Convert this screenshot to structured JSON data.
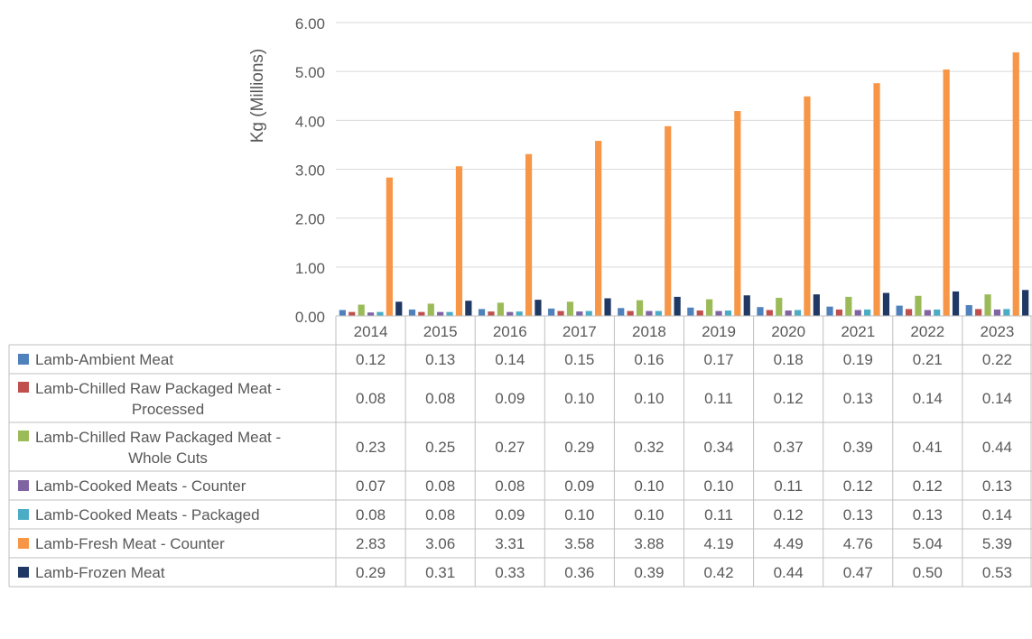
{
  "chart_data": {
    "type": "bar",
    "ylabel": "Kg (Millions)",
    "ylim": [
      0,
      6
    ],
    "yticks": [
      "0.00",
      "1.00",
      "2.00",
      "3.00",
      "4.00",
      "5.00",
      "6.00"
    ],
    "grid": true,
    "legend": "data-table",
    "categories": [
      "2014",
      "2015",
      "2016",
      "2017",
      "2018",
      "2019",
      "2020",
      "2021",
      "2022",
      "2023"
    ],
    "series": [
      {
        "name": "Lamb-Ambient Meat",
        "color": "#4f81bd",
        "values": [
          0.12,
          0.13,
          0.14,
          0.15,
          0.16,
          0.17,
          0.18,
          0.19,
          0.21,
          0.22
        ]
      },
      {
        "name": "Lamb-Chilled Raw Packaged Meat - Processed",
        "color": "#c0504d",
        "values": [
          0.08,
          0.08,
          0.09,
          0.1,
          0.1,
          0.11,
          0.12,
          0.13,
          0.14,
          0.14
        ]
      },
      {
        "name": "Lamb-Chilled Raw Packaged Meat - Whole Cuts",
        "color": "#9bbb59",
        "values": [
          0.23,
          0.25,
          0.27,
          0.29,
          0.32,
          0.34,
          0.37,
          0.39,
          0.41,
          0.44
        ]
      },
      {
        "name": "Lamb-Cooked Meats - Counter",
        "color": "#8064a2",
        "values": [
          0.07,
          0.08,
          0.08,
          0.09,
          0.1,
          0.1,
          0.11,
          0.12,
          0.12,
          0.13
        ]
      },
      {
        "name": "Lamb-Cooked Meats - Packaged",
        "color": "#4bacc6",
        "values": [
          0.08,
          0.08,
          0.09,
          0.1,
          0.1,
          0.11,
          0.12,
          0.13,
          0.13,
          0.14
        ]
      },
      {
        "name": "Lamb-Fresh Meat - Counter",
        "color": "#f79646",
        "values": [
          2.83,
          3.06,
          3.31,
          3.58,
          3.88,
          4.19,
          4.49,
          4.76,
          5.04,
          5.39
        ]
      },
      {
        "name": "Lamb-Frozen Meat",
        "color": "#1f3864",
        "values": [
          0.29,
          0.31,
          0.33,
          0.36,
          0.39,
          0.42,
          0.44,
          0.47,
          0.5,
          0.53
        ]
      }
    ]
  }
}
